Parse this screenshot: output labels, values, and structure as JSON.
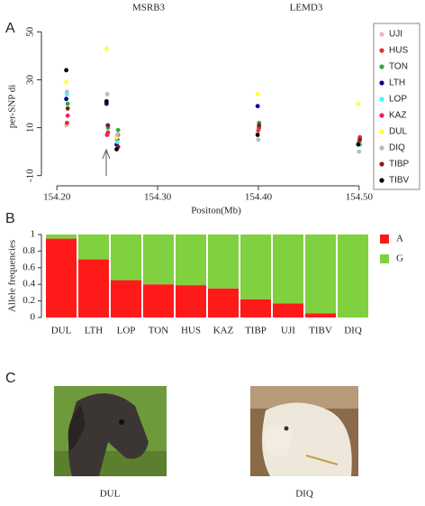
{
  "panel_labels": [
    "A",
    "B",
    "C"
  ],
  "chart_data": [
    {
      "type": "scatter",
      "gene_labels": [
        "MSRB3",
        "LEMD3"
      ],
      "x_label": "Positon(Mb)",
      "y_label": "per-SNP di",
      "x": [
        154.21,
        154.25,
        154.26,
        154.4,
        154.5
      ],
      "xlim": [
        154.19,
        154.51
      ],
      "ylim": [
        -12,
        52
      ],
      "xticks": [
        {
          "value": 154.2,
          "label": "154.20"
        },
        {
          "value": 154.3,
          "label": "154.30"
        },
        {
          "value": 154.4,
          "label": "154.40"
        },
        {
          "value": 154.5,
          "label": "154.50"
        }
      ],
      "yticks": [
        -10,
        10,
        30,
        50
      ],
      "series": [
        {
          "name": "UJI",
          "color": "#f4b6b6",
          "values": [
            11,
            7,
            6,
            8,
            3
          ]
        },
        {
          "name": "HUS",
          "color": "#e03030",
          "values": [
            12,
            7,
            5,
            9,
            4
          ]
        },
        {
          "name": "TON",
          "color": "#33aa33",
          "values": [
            20,
            10,
            9,
            12,
            3
          ]
        },
        {
          "name": "LTH",
          "color": "#000099",
          "values": [
            22,
            20,
            3,
            19,
            3
          ]
        },
        {
          "name": "LOP",
          "color": "#33ffff",
          "values": [
            24,
            11,
            4,
            10,
            3
          ]
        },
        {
          "name": "KAZ",
          "color": "#ee2255",
          "values": [
            15,
            8,
            7,
            10,
            6
          ]
        },
        {
          "name": "DUL",
          "color": "#ffff33",
          "values": [
            29,
            43,
            6,
            24,
            20
          ]
        },
        {
          "name": "DIQ",
          "color": "#bbbbbb",
          "values": [
            25,
            24,
            7,
            5,
            0
          ]
        },
        {
          "name": "TIBP",
          "color": "#8b1a1a",
          "values": [
            18,
            11,
            2,
            11,
            5
          ]
        },
        {
          "name": "TIBV",
          "color": "#000000",
          "values": [
            34,
            21,
            1,
            7,
            3
          ]
        }
      ]
    },
    {
      "type": "bar",
      "stacked": true,
      "y_label": "Allele frequencies",
      "categories": [
        "DUL",
        "LTH",
        "LOP",
        "TON",
        "HUS",
        "KAZ",
        "TIBP",
        "UJI",
        "TIBV",
        "DIQ"
      ],
      "ylim": [
        0,
        1
      ],
      "yticks": [
        0,
        0.2,
        0.4,
        0.6,
        0.8,
        1
      ],
      "series": [
        {
          "name": "A",
          "color": "#ff1a1a",
          "values": [
            0.95,
            0.7,
            0.45,
            0.4,
            0.39,
            0.35,
            0.22,
            0.17,
            0.05,
            0
          ]
        },
        {
          "name": "G",
          "color": "#80d040",
          "values": [
            0.05,
            0.3,
            0.55,
            0.6,
            0.61,
            0.65,
            0.78,
            0.83,
            0.95,
            1
          ]
        }
      ]
    }
  ],
  "photos": [
    {
      "label": "DUL"
    },
    {
      "label": "DIQ"
    }
  ]
}
